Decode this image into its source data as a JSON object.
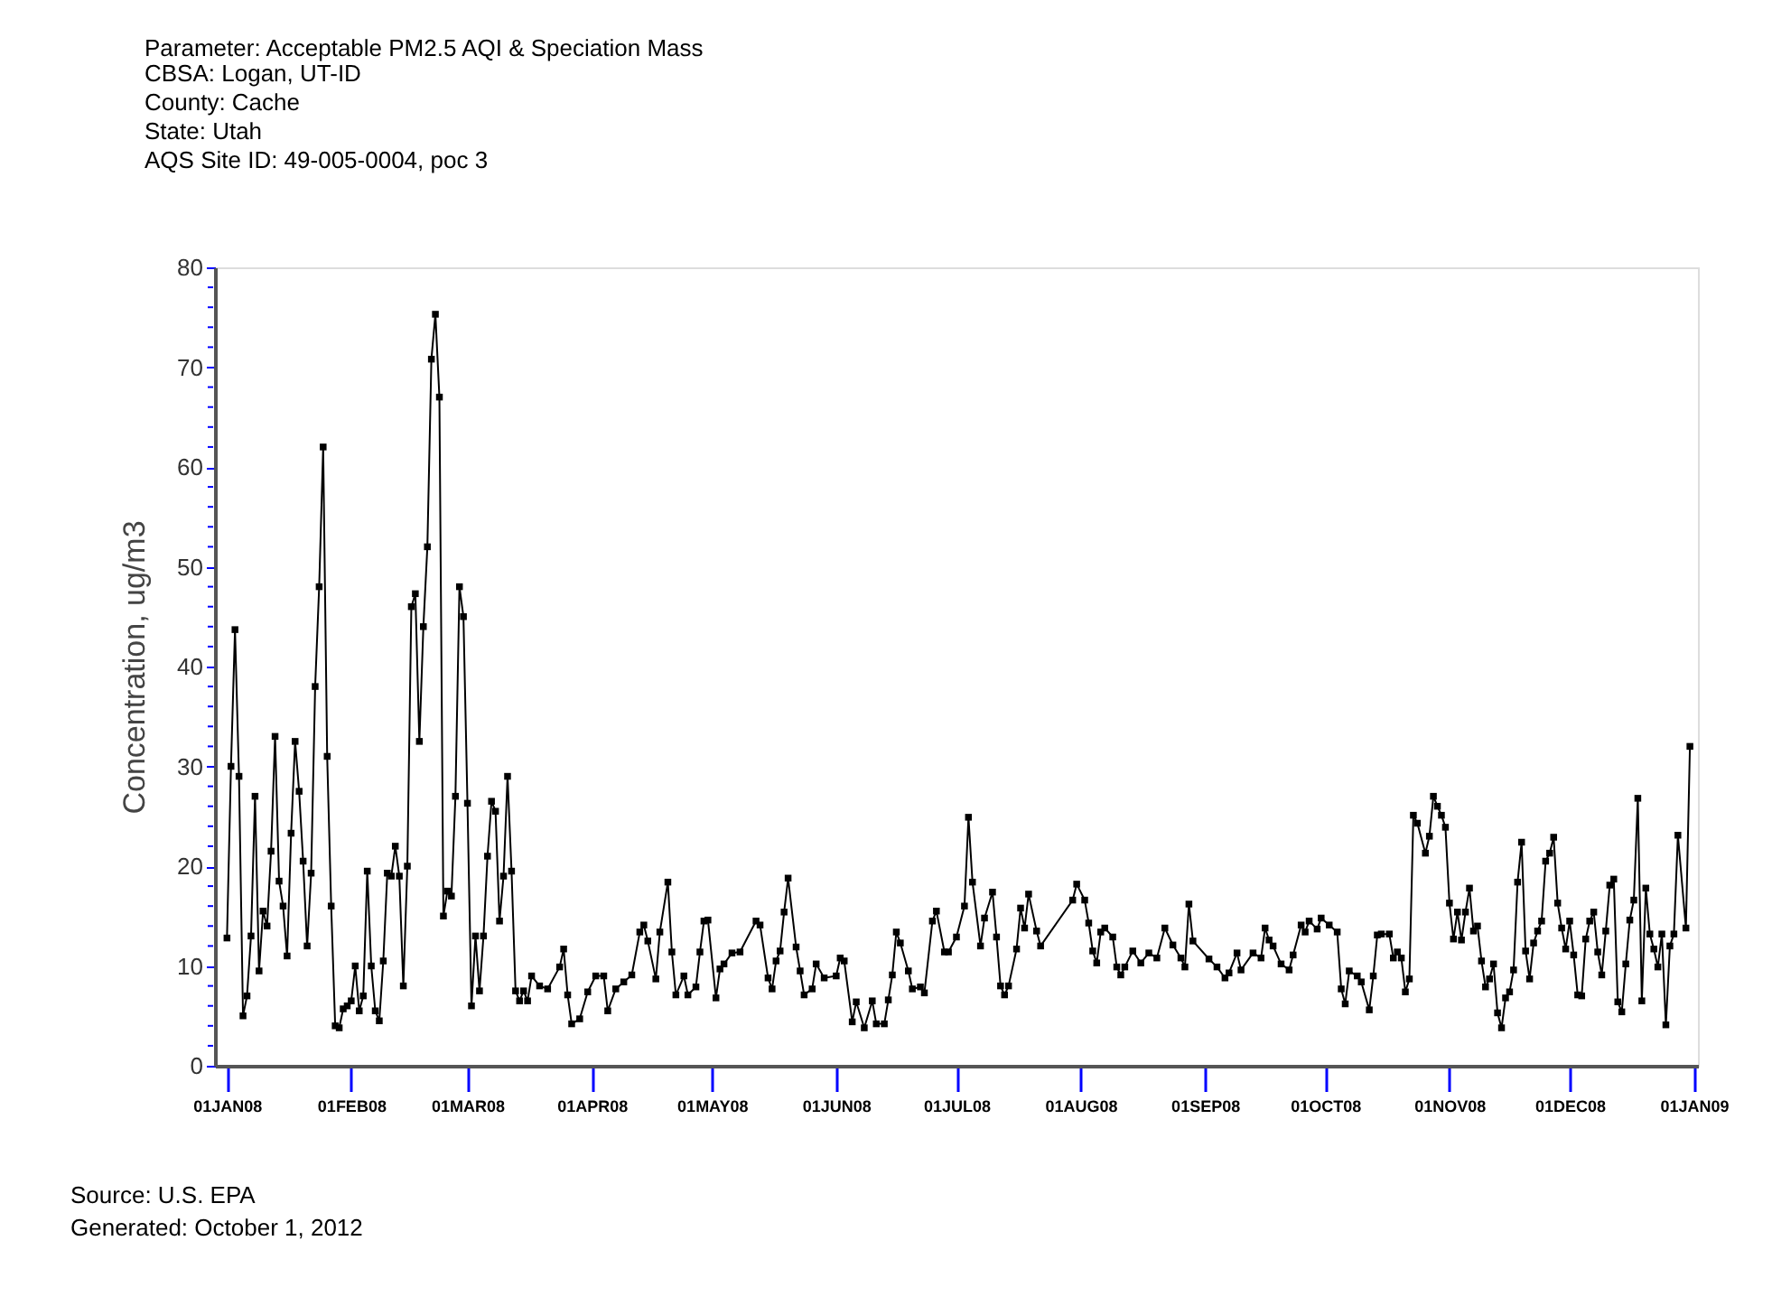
{
  "chart_data": {
    "type": "line",
    "title": "Parameter: Acceptable PM2.5 AQI & Speciation Mass",
    "subtitle": "CBSA: Logan, UT-ID\nCounty: Cache\nState: Utah\nAQS Site ID: 49-005-0004, poc 3",
    "ylabel": "Concentration, ug/m3",
    "annotations": [
      "Source: U.S. EPA",
      "Generated: October 1, 2012"
    ],
    "marker": "square",
    "line_style": "solid",
    "grid": false,
    "xlim": [
      "2007-12-29",
      "2009-01-02"
    ],
    "xticks": [
      {
        "value": "2008-01-01",
        "label": "01JAN08"
      },
      {
        "value": "2008-02-01",
        "label": "01FEB08"
      },
      {
        "value": "2008-03-01",
        "label": "01MAR08"
      },
      {
        "value": "2008-04-01",
        "label": "01APR08"
      },
      {
        "value": "2008-05-01",
        "label": "01MAY08"
      },
      {
        "value": "2008-06-01",
        "label": "01JUN08"
      },
      {
        "value": "2008-07-01",
        "label": "01JUL08"
      },
      {
        "value": "2008-08-01",
        "label": "01AUG08"
      },
      {
        "value": "2008-09-01",
        "label": "01SEP08"
      },
      {
        "value": "2008-10-01",
        "label": "01OCT08"
      },
      {
        "value": "2008-11-01",
        "label": "01NOV08"
      },
      {
        "value": "2008-12-01",
        "label": "01DEC08"
      },
      {
        "value": "2009-01-01",
        "label": "01JAN09"
      }
    ],
    "ylim": [
      0,
      80
    ],
    "yticks": [
      0,
      {
        "value": 2,
        "label": null
      },
      {
        "value": 4,
        "label": null
      },
      {
        "value": 6,
        "label": null
      },
      {
        "value": 8,
        "label": null
      },
      10,
      {
        "value": 12,
        "label": null
      },
      {
        "value": 14,
        "label": null
      },
      {
        "value": 16,
        "label": null
      },
      {
        "value": 18,
        "label": null
      },
      20,
      {
        "value": 22,
        "label": null
      },
      {
        "value": 24,
        "label": null
      },
      {
        "value": 26,
        "label": null
      },
      {
        "value": 28,
        "label": null
      },
      30,
      {
        "value": 32,
        "label": null
      },
      {
        "value": 34,
        "label": null
      },
      {
        "value": 36,
        "label": null
      },
      {
        "value": 38,
        "label": null
      },
      40,
      {
        "value": 42,
        "label": null
      },
      {
        "value": 44,
        "label": null
      },
      {
        "value": 46,
        "label": null
      },
      {
        "value": 48,
        "label": null
      },
      50,
      {
        "value": 52,
        "label": null
      },
      {
        "value": 54,
        "label": null
      },
      {
        "value": 56,
        "label": null
      },
      {
        "value": 58,
        "label": null
      },
      60,
      {
        "value": 62,
        "label": null
      },
      {
        "value": 64,
        "label": null
      },
      {
        "value": 66,
        "label": null
      },
      {
        "value": 68,
        "label": null
      },
      70,
      {
        "value": 72,
        "label": null
      },
      {
        "value": 74,
        "label": null
      },
      {
        "value": 76,
        "label": null
      },
      {
        "value": 78,
        "label": null
      },
      80
    ],
    "series": [
      {
        "color": "#000000",
        "x": [
          "2008-01-01",
          "2008-01-02",
          "2008-01-03",
          "2008-01-04",
          "2008-01-05",
          "2008-01-06",
          "2008-01-07",
          "2008-01-08",
          "2008-01-09",
          "2008-01-10",
          "2008-01-11",
          "2008-01-12",
          "2008-01-13",
          "2008-01-14",
          "2008-01-15",
          "2008-01-16",
          "2008-01-17",
          "2008-01-18",
          "2008-01-19",
          "2008-01-20",
          "2008-01-21",
          "2008-01-22",
          "2008-01-23",
          "2008-01-24",
          "2008-01-25",
          "2008-01-26",
          "2008-01-27",
          "2008-01-28",
          "2008-01-29",
          "2008-01-30",
          "2008-01-31",
          "2008-02-01",
          "2008-02-02",
          "2008-02-03",
          "2008-02-04",
          "2008-02-05",
          "2008-02-06",
          "2008-02-07",
          "2008-02-08",
          "2008-02-09",
          "2008-02-10",
          "2008-02-11",
          "2008-02-12",
          "2008-02-13",
          "2008-02-14",
          "2008-02-15",
          "2008-02-16",
          "2008-02-17",
          "2008-02-18",
          "2008-02-19",
          "2008-02-20",
          "2008-02-21",
          "2008-02-22",
          "2008-02-23",
          "2008-02-24",
          "2008-02-25",
          "2008-02-26",
          "2008-02-27",
          "2008-02-28",
          "2008-02-29",
          "2008-03-01",
          "2008-03-02",
          "2008-03-03",
          "2008-03-04",
          "2008-03-05",
          "2008-03-06",
          "2008-03-07",
          "2008-03-08",
          "2008-03-09",
          "2008-03-10",
          "2008-03-11",
          "2008-03-12",
          "2008-03-13",
          "2008-03-14",
          "2008-03-15",
          "2008-03-16",
          "2008-03-17",
          "2008-03-19",
          "2008-03-21",
          "2008-03-24",
          "2008-03-25",
          "2008-03-26",
          "2008-03-27",
          "2008-03-29",
          "2008-03-31",
          "2008-04-02",
          "2008-04-04",
          "2008-04-05",
          "2008-04-07",
          "2008-04-09",
          "2008-04-11",
          "2008-04-13",
          "2008-04-14",
          "2008-04-15",
          "2008-04-17",
          "2008-04-18",
          "2008-04-20",
          "2008-04-21",
          "2008-04-22",
          "2008-04-24",
          "2008-04-25",
          "2008-04-27",
          "2008-04-28",
          "2008-04-29",
          "2008-04-30",
          "2008-05-02",
          "2008-05-03",
          "2008-05-04",
          "2008-05-06",
          "2008-05-08",
          "2008-05-12",
          "2008-05-13",
          "2008-05-15",
          "2008-05-16",
          "2008-05-17",
          "2008-05-18",
          "2008-05-19",
          "2008-05-20",
          "2008-05-22",
          "2008-05-23",
          "2008-05-24",
          "2008-05-26",
          "2008-05-27",
          "2008-05-29",
          "2008-06-01",
          "2008-06-02",
          "2008-06-03",
          "2008-06-05",
          "2008-06-06",
          "2008-06-08",
          "2008-06-10",
          "2008-06-11",
          "2008-06-13",
          "2008-06-14",
          "2008-06-15",
          "2008-06-16",
          "2008-06-17",
          "2008-06-19",
          "2008-06-20",
          "2008-06-22",
          "2008-06-23",
          "2008-06-25",
          "2008-06-26",
          "2008-06-28",
          "2008-06-29",
          "2008-07-01",
          "2008-07-03",
          "2008-07-04",
          "2008-07-05",
          "2008-07-07",
          "2008-07-08",
          "2008-07-10",
          "2008-07-11",
          "2008-07-12",
          "2008-07-13",
          "2008-07-14",
          "2008-07-16",
          "2008-07-17",
          "2008-07-18",
          "2008-07-19",
          "2008-07-21",
          "2008-07-22",
          "2008-07-30",
          "2008-07-31",
          "2008-08-02",
          "2008-08-03",
          "2008-08-04",
          "2008-08-05",
          "2008-08-06",
          "2008-08-07",
          "2008-08-09",
          "2008-08-10",
          "2008-08-11",
          "2008-08-12",
          "2008-08-14",
          "2008-08-16",
          "2008-08-18",
          "2008-08-20",
          "2008-08-22",
          "2008-08-24",
          "2008-08-26",
          "2008-08-27",
          "2008-08-28",
          "2008-08-29",
          "2008-09-02",
          "2008-09-04",
          "2008-09-06",
          "2008-09-07",
          "2008-09-09",
          "2008-09-10",
          "2008-09-13",
          "2008-09-15",
          "2008-09-16",
          "2008-09-17",
          "2008-09-18",
          "2008-09-20",
          "2008-09-22",
          "2008-09-23",
          "2008-09-25",
          "2008-09-26",
          "2008-09-27",
          "2008-09-29",
          "2008-09-30",
          "2008-10-02",
          "2008-10-04",
          "2008-10-05",
          "2008-10-06",
          "2008-10-07",
          "2008-10-09",
          "2008-10-10",
          "2008-10-12",
          "2008-10-13",
          "2008-10-14",
          "2008-10-15",
          "2008-10-17",
          "2008-10-18",
          "2008-10-19",
          "2008-10-20",
          "2008-10-21",
          "2008-10-22",
          "2008-10-23",
          "2008-10-24",
          "2008-10-26",
          "2008-10-27",
          "2008-10-28",
          "2008-10-29",
          "2008-10-30",
          "2008-10-31",
          "2008-11-01",
          "2008-11-02",
          "2008-11-03",
          "2008-11-04",
          "2008-11-05",
          "2008-11-06",
          "2008-11-07",
          "2008-11-08",
          "2008-11-09",
          "2008-11-10",
          "2008-11-11",
          "2008-11-12",
          "2008-11-13",
          "2008-11-14",
          "2008-11-15",
          "2008-11-16",
          "2008-11-17",
          "2008-11-18",
          "2008-11-19",
          "2008-11-20",
          "2008-11-21",
          "2008-11-22",
          "2008-11-23",
          "2008-11-24",
          "2008-11-25",
          "2008-11-26",
          "2008-11-27",
          "2008-11-28",
          "2008-11-29",
          "2008-11-30",
          "2008-12-01",
          "2008-12-02",
          "2008-12-03",
          "2008-12-04",
          "2008-12-05",
          "2008-12-06",
          "2008-12-07",
          "2008-12-08",
          "2008-12-09",
          "2008-12-10",
          "2008-12-11",
          "2008-12-12",
          "2008-12-13",
          "2008-12-14",
          "2008-12-15",
          "2008-12-16",
          "2008-12-17",
          "2008-12-18",
          "2008-12-19",
          "2008-12-20",
          "2008-12-21",
          "2008-12-22",
          "2008-12-23",
          "2008-12-24",
          "2008-12-25",
          "2008-12-26",
          "2008-12-27",
          "2008-12-28",
          "2008-12-30",
          "2008-12-31"
        ],
        "values": [
          12.8,
          30,
          43.7,
          29,
          5,
          7,
          13,
          27,
          9.5,
          15.5,
          14,
          21.5,
          33,
          18.5,
          16,
          11,
          23.3,
          32.5,
          27.5,
          20.5,
          12,
          19.3,
          38,
          48,
          62,
          31,
          16,
          4,
          3.8,
          5.7,
          6,
          6.5,
          10,
          5.5,
          7,
          19.5,
          10,
          5.5,
          4.5,
          10.5,
          19.3,
          19,
          22,
          19,
          8,
          20,
          46,
          47.3,
          32.5,
          44,
          52,
          70.8,
          75.3,
          67,
          15,
          17.5,
          17,
          27,
          48,
          45,
          26.3,
          6,
          13,
          7.5,
          13,
          21,
          26.5,
          25.5,
          14.5,
          19,
          29,
          19.5,
          7.5,
          6.5,
          7.5,
          6.5,
          9,
          8,
          7.7,
          9.9,
          11.7,
          7.1,
          4.2,
          4.7,
          7.4,
          9,
          9,
          5.5,
          7.7,
          8.4,
          9.1,
          13.4,
          14.1,
          12.5,
          8.7,
          13.4,
          18.4,
          11.4,
          7.1,
          9,
          7.1,
          7.9,
          11.4,
          14.5,
          14.6,
          6.8,
          9.7,
          10.2,
          11.3,
          11.4,
          14.5,
          14.1,
          8.8,
          7.7,
          10.5,
          11.5,
          15.4,
          18.8,
          11.9,
          9.5,
          7.1,
          7.7,
          10.2,
          8.8,
          9,
          10.8,
          10.5,
          4.4,
          6.4,
          3.8,
          6.5,
          4.2,
          4.2,
          6.6,
          9.1,
          13.4,
          12.3,
          9.5,
          7.7,
          7.9,
          7.3,
          14.5,
          15.5,
          11.4,
          11.4,
          12.9,
          16,
          24.9,
          18.4,
          12,
          14.8,
          17.4,
          12.9,
          8,
          7.1,
          8,
          11.7,
          15.8,
          13.8,
          17.2,
          13.5,
          12,
          16.6,
          18.2,
          16.6,
          14.3,
          11.5,
          10.3,
          13.4,
          13.8,
          12.9,
          9.9,
          9.1,
          9.9,
          11.5,
          10.3,
          11.3,
          10.8,
          13.8,
          12.1,
          10.8,
          9.9,
          16.2,
          12.5,
          10.7,
          9.9,
          8.8,
          9.3,
          11.3,
          9.6,
          11.3,
          10.8,
          13.8,
          12.6,
          12,
          10.2,
          9.6,
          11.1,
          14.1,
          13.4,
          14.5,
          13.7,
          14.8,
          14.1,
          13.4,
          7.7,
          6.2,
          9.5,
          9,
          8.4,
          5.6,
          9,
          13.1,
          13.2,
          13.2,
          10.8,
          11.4,
          10.8,
          7.4,
          8.7,
          25.1,
          24.3,
          21.3,
          23,
          27,
          26,
          25.1,
          23.9,
          16.3,
          12.7,
          15.4,
          12.6,
          15.4,
          17.8,
          13.5,
          14,
          10.5,
          7.9,
          8.7,
          10.2,
          5.3,
          3.8,
          6.8,
          7.4,
          9.6,
          18.4,
          22.4,
          11.5,
          8.7,
          12.3,
          13.5,
          14.5,
          20.5,
          21.3,
          22.9,
          16.3,
          13.8,
          11.7,
          14.5,
          11.1,
          7.1,
          7,
          12.7,
          14.5,
          15.4,
          11.4,
          9.1,
          13.5,
          18.1,
          18.7,
          6.4,
          5.4,
          10.2,
          14.6,
          16.6,
          26.8,
          6.5,
          17.8,
          13.2,
          11.7,
          9.9,
          13.2,
          4.1,
          12,
          13.2,
          23.1,
          13.8,
          32
        ]
      }
    ]
  }
}
